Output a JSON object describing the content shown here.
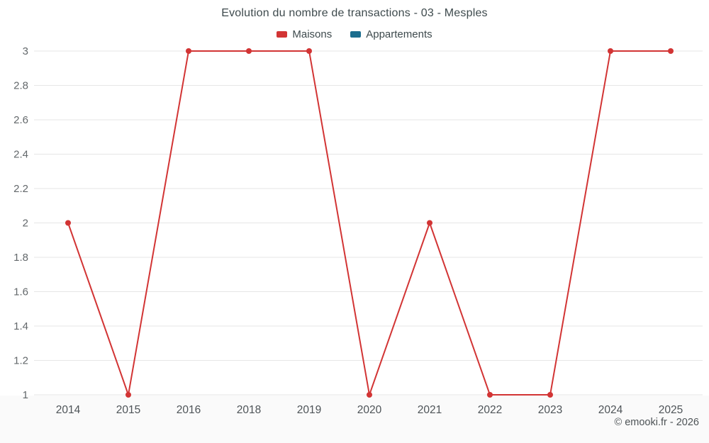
{
  "chart": {
    "title": "Evolution du nombre de transactions - 03 - Mesples",
    "legend": [
      {
        "label": "Maisons",
        "color": "#d23434"
      },
      {
        "label": "Appartements",
        "color": "#1b6d8e"
      }
    ],
    "copyright": "© emooki.fr - 2026"
  },
  "chart_data": {
    "type": "line",
    "title": "Evolution du nombre de transactions - 03 - Mesples",
    "categories": [
      "2014",
      "2015",
      "2016",
      "2018",
      "2019",
      "2020",
      "2021",
      "2022",
      "2023",
      "2024",
      "2025"
    ],
    "series": [
      {
        "name": "Maisons",
        "color": "#d23434",
        "values": [
          2,
          1,
          3,
          3,
          3,
          1,
          2,
          1,
          1,
          3,
          3
        ]
      },
      {
        "name": "Appartements",
        "color": "#1b6d8e",
        "values": []
      }
    ],
    "xlabel": "",
    "ylabel": "",
    "ylim": [
      1,
      3
    ],
    "y_ticks": [
      1,
      1.2,
      1.4,
      1.6,
      1.8,
      2,
      2.2,
      2.4,
      2.6,
      2.8,
      3
    ],
    "grid": "horizontal",
    "legend_position": "top",
    "marker": "circle"
  }
}
